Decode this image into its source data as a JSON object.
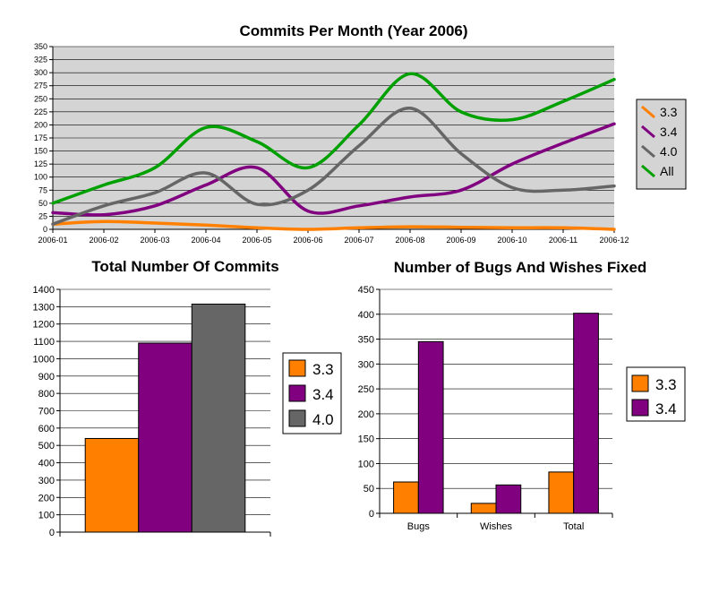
{
  "chart_data": [
    {
      "id": "commits_per_month",
      "type": "line",
      "title": "Commits Per Month (Year 2006)",
      "xlabel": "",
      "ylabel": "",
      "categories": [
        "2006-01",
        "2006-02",
        "2006-03",
        "2006-04",
        "2006-05",
        "2006-06",
        "2006-07",
        "2006-08",
        "2006-09",
        "2006-10",
        "2006-11",
        "2006-12"
      ],
      "ylim": [
        0,
        350
      ],
      "yticks": [
        0,
        25,
        50,
        75,
        100,
        125,
        150,
        175,
        200,
        225,
        250,
        275,
        300,
        325,
        350
      ],
      "grid": true,
      "legend": "right",
      "series": [
        {
          "name": "3.3",
          "color": "#ff7f00",
          "values": [
            10,
            15,
            12,
            8,
            3,
            0,
            3,
            5,
            4,
            3,
            3,
            0
          ]
        },
        {
          "name": "3.4",
          "color": "#800080",
          "values": [
            32,
            28,
            45,
            85,
            118,
            35,
            45,
            62,
            75,
            125,
            165,
            202
          ]
        },
        {
          "name": "4.0",
          "color": "#666666",
          "values": [
            10,
            45,
            70,
            108,
            48,
            75,
            160,
            232,
            145,
            80,
            75,
            83
          ]
        },
        {
          "name": "All",
          "color": "#00a000",
          "values": [
            50,
            85,
            118,
            195,
            168,
            118,
            200,
            298,
            225,
            210,
            245,
            287
          ]
        }
      ]
    },
    {
      "id": "total_commits",
      "type": "bar",
      "title": "Total Number Of Commits",
      "xlabel": "",
      "ylabel": "",
      "categories": [
        ""
      ],
      "ylim": [
        0,
        1400
      ],
      "yticks": [
        0,
        100,
        200,
        300,
        400,
        500,
        600,
        700,
        800,
        900,
        1000,
        1100,
        1200,
        1300,
        1400
      ],
      "grid": true,
      "legend": "right",
      "series": [
        {
          "name": "3.3",
          "color": "#ff7f00",
          "values": [
            540
          ]
        },
        {
          "name": "3.4",
          "color": "#800080",
          "values": [
            1090
          ]
        },
        {
          "name": "4.0",
          "color": "#666666",
          "values": [
            1315
          ]
        }
      ]
    },
    {
      "id": "bugs_wishes",
      "type": "bar",
      "title": "Number of Bugs And Wishes Fixed",
      "xlabel": "",
      "ylabel": "",
      "categories": [
        "Bugs",
        "Wishes",
        "Total"
      ],
      "ylim": [
        0,
        450
      ],
      "yticks": [
        0,
        50,
        100,
        150,
        200,
        250,
        300,
        350,
        400,
        450
      ],
      "grid": true,
      "legend": "right",
      "series": [
        {
          "name": "3.3",
          "color": "#ff7f00",
          "values": [
            63,
            20,
            83
          ]
        },
        {
          "name": "3.4",
          "color": "#800080",
          "values": [
            345,
            57,
            402
          ]
        }
      ]
    }
  ]
}
